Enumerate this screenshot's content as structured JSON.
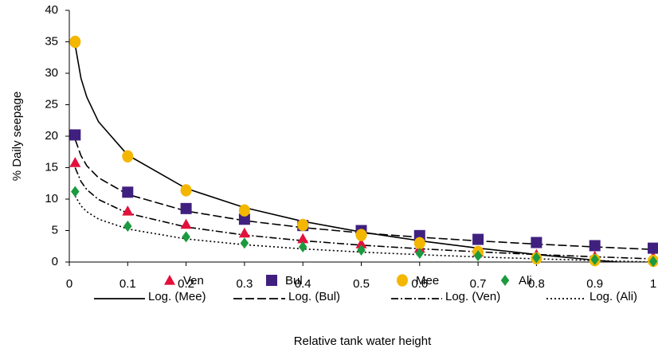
{
  "chart_data": {
    "type": "scatter",
    "xlabel": "Relative tank water height",
    "ylabel": "% Daily seepage",
    "x": [
      0.01,
      0.1,
      0.2,
      0.3,
      0.4,
      0.5,
      0.6,
      0.7,
      0.8,
      0.9,
      1
    ],
    "xlim": [
      0,
      1
    ],
    "xticks": [
      0,
      0.1,
      0.2,
      0.3,
      0.4,
      0.5,
      0.6,
      0.7,
      0.8,
      0.9,
      1
    ],
    "ylim": [
      0,
      40
    ],
    "yticks": [
      0,
      5,
      10,
      15,
      20,
      25,
      30,
      35,
      40
    ],
    "legend": "bottom",
    "series": [
      {
        "name": "Ven",
        "color": "#e3103c",
        "marker": "triangle",
        "values": [
          15.8,
          8.1,
          6.0,
          4.6,
          3.7,
          2.9,
          2.2,
          1.6,
          1.2,
          0.9,
          0.8
        ]
      },
      {
        "name": "Bul",
        "color": "#40207f",
        "marker": "square",
        "values": [
          20.2,
          11.1,
          8.5,
          6.8,
          5.8,
          5.0,
          4.2,
          3.6,
          3.1,
          2.6,
          2.2
        ]
      },
      {
        "name": "Mee",
        "color": "#f3b700",
        "marker": "circle",
        "values": [
          35,
          16.8,
          11.4,
          8.2,
          5.9,
          4.3,
          3.0,
          1.6,
          0.6,
          0.3,
          0.2
        ]
      },
      {
        "name": "Ali",
        "color": "#1b9a3f",
        "marker": "diamond",
        "values": [
          11.2,
          5.7,
          4.0,
          3.0,
          2.4,
          1.9,
          1.4,
          1.0,
          0.7,
          0.4,
          0.1
        ]
      }
    ],
    "trendlines": [
      {
        "name": "Log. (Mee)",
        "color": "#000000",
        "style": "solid",
        "x": [
          0.01,
          0.02,
          0.03,
          0.05,
          0.1,
          0.2,
          0.3,
          0.4,
          0.5,
          0.6,
          0.7,
          0.8,
          0.9,
          1
        ],
        "values": [
          34.5,
          29.2,
          26.2,
          22.3,
          17.0,
          11.7,
          8.65,
          6.46,
          4.77,
          3.38,
          2.21,
          1.2,
          0.3,
          -0.5
        ]
      },
      {
        "name": "Log. (Bul)",
        "color": "#000000",
        "style": "dashed",
        "x": [
          0.01,
          0.02,
          0.03,
          0.05,
          0.1,
          0.2,
          0.3,
          0.4,
          0.5,
          0.6,
          0.7,
          0.8,
          0.9,
          1
        ],
        "values": [
          19.5,
          16.9,
          15.3,
          13.4,
          10.75,
          8.11,
          6.58,
          5.48,
          4.63,
          3.94,
          3.36,
          2.85,
          2.4,
          2.0
        ]
      },
      {
        "name": "Log. (Ven)",
        "color": "#000000",
        "style": "dashdot",
        "x": [
          0.01,
          0.02,
          0.03,
          0.05,
          0.1,
          0.2,
          0.3,
          0.4,
          0.5,
          0.6,
          0.7,
          0.8,
          0.9,
          1
        ],
        "values": [
          15.0,
          12.8,
          11.5,
          9.94,
          7.75,
          5.57,
          4.29,
          3.39,
          2.68,
          2.11,
          1.62,
          1.2,
          0.83,
          0.5
        ]
      },
      {
        "name": "Log. (Ali)",
        "color": "#000000",
        "style": "dotted",
        "x": [
          0.01,
          0.02,
          0.03,
          0.05,
          0.1,
          0.2,
          0.3,
          0.4,
          0.5,
          0.6,
          0.7,
          0.8,
          0.9,
          1
        ],
        "values": [
          10.5,
          8.92,
          8.0,
          6.83,
          5.25,
          3.67,
          2.75,
          2.09,
          1.58,
          1.17,
          0.81,
          0.51,
          0.24,
          0
        ]
      }
    ]
  }
}
